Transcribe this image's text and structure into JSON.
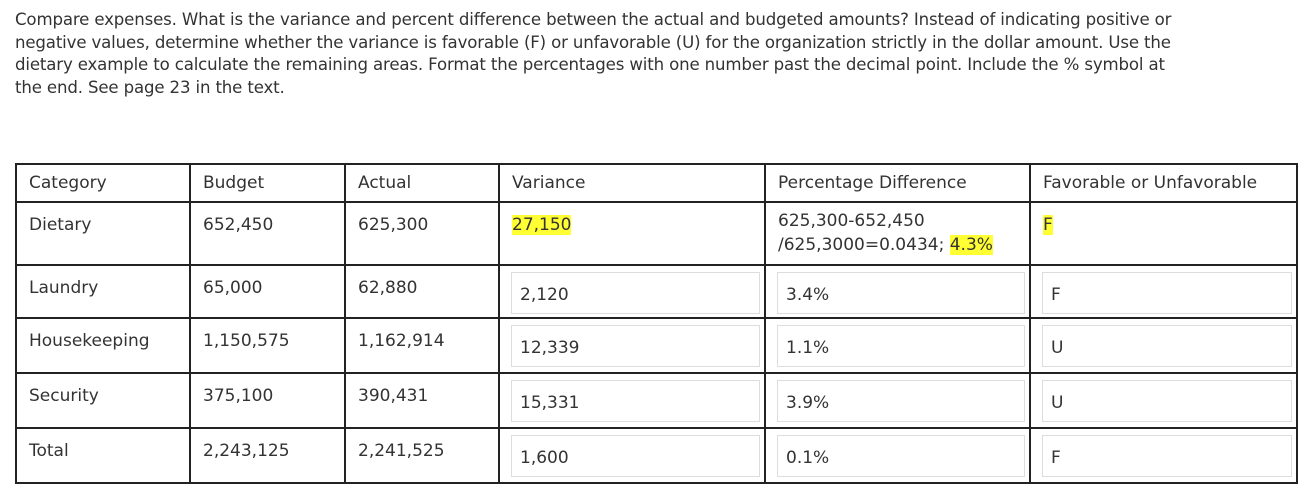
{
  "instructions": [
    "Compare expenses. What is the variance and percent difference between the actual and budgeted amounts? Instead of indicating positive or",
    "negative values, determine whether the variance is favorable (F) or unfavorable (U) for the organization strictly in the dollar amount. Use the",
    "dietary example to calculate the remaining areas. Format the percentages with one number past the decimal point.  Include the % symbol at",
    "the end. See page 23 in the text."
  ],
  "table": {
    "header": [
      "Category",
      "Budget",
      "Actual",
      "Variance",
      "Percentage Difference",
      "Favorable or Unfavorable"
    ],
    "example": {
      "category": "Dietary",
      "budget": "652,450",
      "actual": "625,300",
      "variance": "27,150",
      "work": [
        "625,300-652,450",
        "/625,3000=0.0434;"
      ],
      "percent": "4.3%",
      "favorable": "F"
    },
    "rows": [
      [
        "Laundry",
        "65,000",
        "62,880",
        "2,120",
        "3.4%",
        "F"
      ],
      [
        "Housekeeping",
        "1,150,575",
        "1,162,914",
        "12,339",
        "1.1%",
        "U"
      ],
      [
        "Security",
        "375,100",
        "390,431",
        "15,331",
        "3.9%",
        "U"
      ],
      [
        "Total",
        "2,243,125",
        "2,241,525",
        "1,600",
        "0.1%",
        "F"
      ]
    ]
  }
}
